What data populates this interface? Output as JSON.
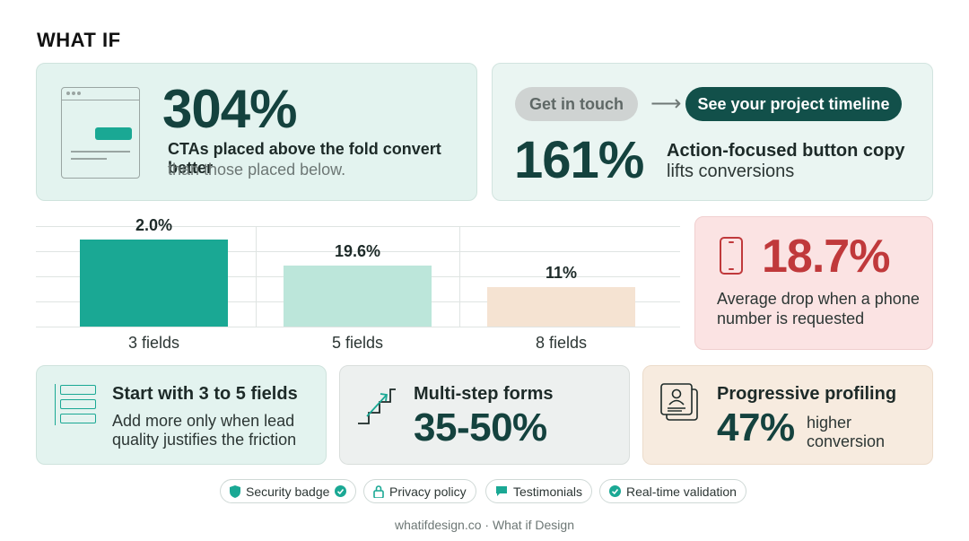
{
  "brand": {
    "logo": "WHAT IF"
  },
  "card_above_fold": {
    "stat": "304%",
    "headline": "CTAs placed above the fold convert better",
    "subline": "than those placed below.",
    "icon": "browser-window-icon"
  },
  "card_button_copy": {
    "button_generic": "Get in touch",
    "button_action": "See your project timeline",
    "stat": "161%",
    "headline": "Action-focused button copy",
    "subline": "lifts conversions",
    "colors": {
      "accent_dark": "#12504a"
    }
  },
  "chart_data": {
    "type": "bar",
    "categories": [
      "3 fields",
      "5 fields",
      "8 fields"
    ],
    "values": [
      2.0,
      19.6,
      11
    ],
    "data_labels": [
      "2.0%",
      "19.6%",
      "11%"
    ],
    "colors": [
      "#1aa894",
      "#bce6da",
      "#f5e3d2"
    ],
    "grid": true
  },
  "card_phone": {
    "stat": "18.7%",
    "description": "Average drop when a phone number is requested",
    "icon": "phone-icon",
    "color": "#c0393b"
  },
  "card_fields": {
    "title": "Start with 3 to 5 fields",
    "description": "Add more only when lead quality justifies the friction",
    "icon": "form-fields-icon"
  },
  "card_multistep": {
    "title": "Multi-step forms",
    "stat": "35-50%",
    "icon": "steps-icon"
  },
  "card_progressive": {
    "title": "Progressive profiling",
    "stat": "47%",
    "subline": "higher conversion",
    "icon": "profile-card-icon"
  },
  "trust_pills": [
    {
      "label": "Security badge",
      "icon": "shield-icon"
    },
    {
      "label": "Privacy policy",
      "icon": "lock-icon"
    },
    {
      "label": "Testimonials",
      "icon": "chat-icon"
    },
    {
      "label": "Real-time validation",
      "icon": "check-circle-icon"
    }
  ],
  "footer": "whatifdesign.co · What if Design"
}
